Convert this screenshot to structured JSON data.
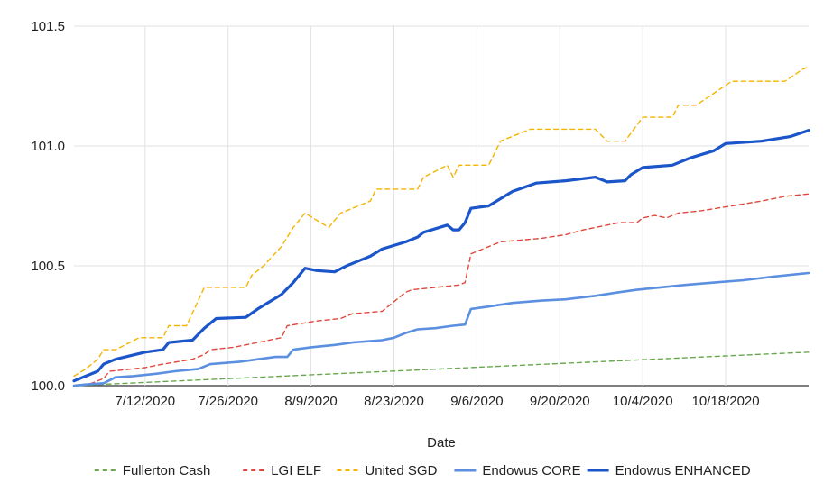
{
  "chart_data": {
    "type": "line",
    "title": "",
    "xlabel": "Date",
    "ylabel": "",
    "ylim": [
      100.0,
      101.5
    ],
    "xlim": [
      "2020-06-30",
      "2020-11-01"
    ],
    "y_ticks": [
      "100.0",
      "100.5",
      "101.0",
      "101.5"
    ],
    "y_tick_values": [
      100.0,
      100.5,
      101.0,
      101.5
    ],
    "x_ticks": [
      "7/12/2020",
      "7/26/2020",
      "8/9/2020",
      "8/23/2020",
      "9/6/2020",
      "9/20/2020",
      "10/4/2020",
      "10/18/2020"
    ],
    "x_tick_dates": [
      "2020-07-12",
      "2020-07-26",
      "2020-08-09",
      "2020-08-23",
      "2020-09-06",
      "2020-09-20",
      "2020-10-04",
      "2020-10-18"
    ],
    "grid": "vertical and horizontal",
    "legend_position": "bottom",
    "series": [
      {
        "name": "Fullerton Cash",
        "color": "#6aa84f",
        "style": "dashed",
        "points": [
          [
            "2020-06-30",
            100.0
          ],
          [
            "2020-11-01",
            100.14
          ]
        ]
      },
      {
        "name": "LGI ELF",
        "color": "#e0473c",
        "style": "dashed",
        "points": [
          [
            "2020-06-30",
            100.0
          ],
          [
            "2020-07-03",
            100.01
          ],
          [
            "2020-07-05",
            100.03
          ],
          [
            "2020-07-06",
            100.06
          ],
          [
            "2020-07-12",
            100.075
          ],
          [
            "2020-07-15",
            100.09
          ],
          [
            "2020-07-20",
            100.11
          ],
          [
            "2020-07-22",
            100.13
          ],
          [
            "2020-07-23",
            100.15
          ],
          [
            "2020-07-27",
            100.16
          ],
          [
            "2020-08-03",
            100.195
          ],
          [
            "2020-08-04",
            100.2
          ],
          [
            "2020-08-05",
            100.25
          ],
          [
            "2020-08-10",
            100.27
          ],
          [
            "2020-08-14",
            100.28
          ],
          [
            "2020-08-16",
            100.3
          ],
          [
            "2020-08-21",
            100.31
          ],
          [
            "2020-08-22",
            100.33
          ],
          [
            "2020-08-25",
            100.39
          ],
          [
            "2020-08-26",
            100.4
          ],
          [
            "2020-09-03",
            100.42
          ],
          [
            "2020-09-04",
            100.43
          ],
          [
            "2020-09-05",
            100.55
          ],
          [
            "2020-09-08",
            100.58
          ],
          [
            "2020-09-10",
            100.6
          ],
          [
            "2020-09-17",
            100.615
          ],
          [
            "2020-09-21",
            100.63
          ],
          [
            "2020-09-24",
            100.65
          ],
          [
            "2020-09-28",
            100.67
          ],
          [
            "2020-09-30",
            100.68
          ],
          [
            "2020-10-03",
            100.68
          ],
          [
            "2020-10-04",
            100.7
          ],
          [
            "2020-10-06",
            100.71
          ],
          [
            "2020-10-08",
            100.7
          ],
          [
            "2020-10-10",
            100.72
          ],
          [
            "2020-10-14",
            100.73
          ],
          [
            "2020-10-19",
            100.75
          ],
          [
            "2020-10-24",
            100.77
          ],
          [
            "2020-10-28",
            100.79
          ],
          [
            "2020-11-01",
            100.8
          ]
        ]
      },
      {
        "name": "United SGD",
        "color": "#f4b400",
        "style": "dashed",
        "points": [
          [
            "2020-06-30",
            100.04
          ],
          [
            "2020-07-02",
            100.07
          ],
          [
            "2020-07-04",
            100.11
          ],
          [
            "2020-07-05",
            100.15
          ],
          [
            "2020-07-07",
            100.15
          ],
          [
            "2020-07-11",
            100.2
          ],
          [
            "2020-07-15",
            100.2
          ],
          [
            "2020-07-16",
            100.25
          ],
          [
            "2020-07-19",
            100.25
          ],
          [
            "2020-07-22",
            100.41
          ],
          [
            "2020-07-29",
            100.41
          ],
          [
            "2020-07-30",
            100.46
          ],
          [
            "2020-08-01",
            100.5
          ],
          [
            "2020-08-04",
            100.58
          ],
          [
            "2020-08-06",
            100.66
          ],
          [
            "2020-08-08",
            100.72
          ],
          [
            "2020-08-10",
            100.69
          ],
          [
            "2020-08-12",
            100.66
          ],
          [
            "2020-08-14",
            100.72
          ],
          [
            "2020-08-16",
            100.74
          ],
          [
            "2020-08-19",
            100.77
          ],
          [
            "2020-08-20",
            100.82
          ],
          [
            "2020-08-27",
            100.82
          ],
          [
            "2020-08-28",
            100.87
          ],
          [
            "2020-09-01",
            100.92
          ],
          [
            "2020-09-02",
            100.87
          ],
          [
            "2020-09-03",
            100.92
          ],
          [
            "2020-09-08",
            100.92
          ],
          [
            "2020-09-10",
            101.02
          ],
          [
            "2020-09-15",
            101.07
          ],
          [
            "2020-09-26",
            101.07
          ],
          [
            "2020-09-28",
            101.02
          ],
          [
            "2020-10-01",
            101.02
          ],
          [
            "2020-10-04",
            101.12
          ],
          [
            "2020-10-09",
            101.12
          ],
          [
            "2020-10-10",
            101.17
          ],
          [
            "2020-10-13",
            101.17
          ],
          [
            "2020-10-16",
            101.22
          ],
          [
            "2020-10-19",
            101.27
          ],
          [
            "2020-10-28",
            101.27
          ],
          [
            "2020-10-31",
            101.32
          ],
          [
            "2020-11-01",
            101.33
          ]
        ]
      },
      {
        "name": "Endowus CORE",
        "color": "#5b8fe0",
        "style": "solid",
        "points": [
          [
            "2020-06-30",
            100.0
          ],
          [
            "2020-07-02",
            100.005
          ],
          [
            "2020-07-05",
            100.01
          ],
          [
            "2020-07-07",
            100.035
          ],
          [
            "2020-07-10",
            100.04
          ],
          [
            "2020-07-14",
            100.05
          ],
          [
            "2020-07-17",
            100.06
          ],
          [
            "2020-07-21",
            100.07
          ],
          [
            "2020-07-23",
            100.09
          ],
          [
            "2020-07-28",
            100.1
          ],
          [
            "2020-08-03",
            100.12
          ],
          [
            "2020-08-05",
            100.12
          ],
          [
            "2020-08-06",
            100.15
          ],
          [
            "2020-08-09",
            100.16
          ],
          [
            "2020-08-13",
            100.17
          ],
          [
            "2020-08-16",
            100.18
          ],
          [
            "2020-08-21",
            100.19
          ],
          [
            "2020-08-23",
            100.2
          ],
          [
            "2020-08-25",
            100.22
          ],
          [
            "2020-08-27",
            100.235
          ],
          [
            "2020-08-30",
            100.24
          ],
          [
            "2020-09-02",
            100.25
          ],
          [
            "2020-09-04",
            100.255
          ],
          [
            "2020-09-05",
            100.32
          ],
          [
            "2020-09-08",
            100.33
          ],
          [
            "2020-09-12",
            100.345
          ],
          [
            "2020-09-17",
            100.355
          ],
          [
            "2020-09-21",
            100.36
          ],
          [
            "2020-09-26",
            100.375
          ],
          [
            "2020-09-30",
            100.39
          ],
          [
            "2020-10-03",
            100.4
          ],
          [
            "2020-10-07",
            100.41
          ],
          [
            "2020-10-11",
            100.42
          ],
          [
            "2020-10-16",
            100.43
          ],
          [
            "2020-10-21",
            100.44
          ],
          [
            "2020-10-26",
            100.455
          ],
          [
            "2020-11-01",
            100.47
          ]
        ]
      },
      {
        "name": "Endowus ENHANCED",
        "color": "#1a55c9",
        "style": "solid",
        "points": [
          [
            "2020-06-30",
            100.02
          ],
          [
            "2020-07-02",
            100.04
          ],
          [
            "2020-07-04",
            100.06
          ],
          [
            "2020-07-05",
            100.09
          ],
          [
            "2020-07-07",
            100.11
          ],
          [
            "2020-07-12",
            100.14
          ],
          [
            "2020-07-15",
            100.15
          ],
          [
            "2020-07-16",
            100.18
          ],
          [
            "2020-07-20",
            100.19
          ],
          [
            "2020-07-22",
            100.24
          ],
          [
            "2020-07-24",
            100.28
          ],
          [
            "2020-07-29",
            100.285
          ],
          [
            "2020-07-31",
            100.32
          ],
          [
            "2020-08-04",
            100.38
          ],
          [
            "2020-08-06",
            100.43
          ],
          [
            "2020-08-08",
            100.49
          ],
          [
            "2020-08-10",
            100.48
          ],
          [
            "2020-08-13",
            100.475
          ],
          [
            "2020-08-15",
            100.5
          ],
          [
            "2020-08-17",
            100.52
          ],
          [
            "2020-08-19",
            100.54
          ],
          [
            "2020-08-21",
            100.57
          ],
          [
            "2020-08-25",
            100.6
          ],
          [
            "2020-08-27",
            100.62
          ],
          [
            "2020-08-28",
            100.64
          ],
          [
            "2020-09-01",
            100.67
          ],
          [
            "2020-09-02",
            100.65
          ],
          [
            "2020-09-03",
            100.65
          ],
          [
            "2020-09-04",
            100.68
          ],
          [
            "2020-09-05",
            100.74
          ],
          [
            "2020-09-08",
            100.75
          ],
          [
            "2020-09-10",
            100.78
          ],
          [
            "2020-09-12",
            100.81
          ],
          [
            "2020-09-16",
            100.845
          ],
          [
            "2020-09-21",
            100.855
          ],
          [
            "2020-09-26",
            100.87
          ],
          [
            "2020-09-28",
            100.85
          ],
          [
            "2020-10-01",
            100.855
          ],
          [
            "2020-10-02",
            100.88
          ],
          [
            "2020-10-04",
            100.91
          ],
          [
            "2020-10-09",
            100.92
          ],
          [
            "2020-10-12",
            100.95
          ],
          [
            "2020-10-16",
            100.98
          ],
          [
            "2020-10-18",
            101.01
          ],
          [
            "2020-10-24",
            101.02
          ],
          [
            "2020-10-29",
            101.04
          ],
          [
            "2020-11-01",
            101.065
          ]
        ]
      }
    ]
  }
}
